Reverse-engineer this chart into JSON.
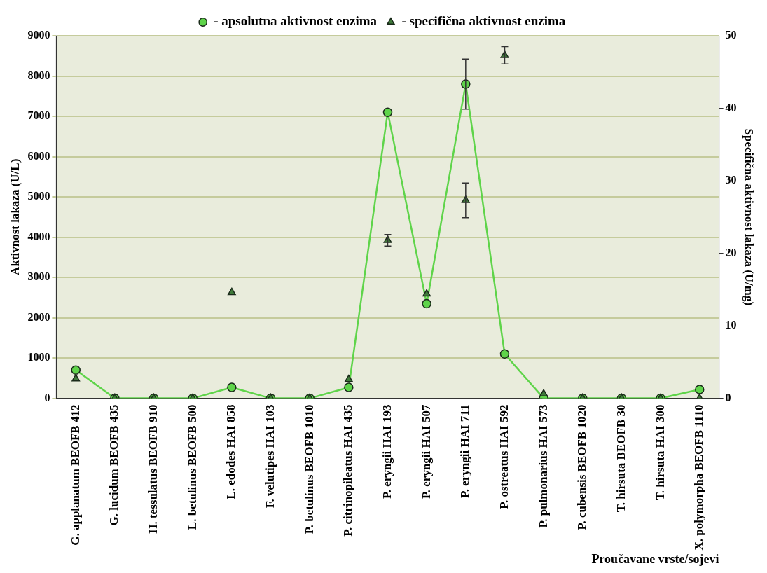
{
  "chart_data": {
    "type": "line",
    "xlabel": "Proučavane vrste/sojevi",
    "ylabel": "Aktivnost lakaza (U/L)",
    "y2label": "Specifična aktivnost lakaza (U/mg)",
    "categories": [
      "G. applanatum BEOFB 412",
      "G. lucidum BEOFB 435",
      "H. tessulatus BEOFB 910",
      "L. betulinus BEOFB 500",
      "L. edodes HAI 858",
      "F. velutipes HAI 103",
      "P. betulinus BEOFB 1010",
      "P. citrinopileatus HAI 435",
      "P. eryngii HAI 193",
      "P. eryngii HAI 507",
      "P. eryngii HAI 711",
      "P. ostreatus HAI 592",
      "P. pulmonarius HAI 573",
      "P. cubensis BEOFB 1020",
      "T. hirsuta BEOFB 30",
      "T. hirsuta HAI 300",
      "X. polymorpha BEOFB 1110"
    ],
    "series": [
      {
        "name": "- apsolutna aktivnost enzima",
        "color": "#5fd44a",
        "marker": "circle",
        "values": [
          700,
          0,
          0,
          0,
          270,
          0,
          0,
          270,
          7100,
          2350,
          7800,
          1100,
          0,
          0,
          0,
          0,
          220
        ],
        "errors": [
          null,
          null,
          null,
          null,
          null,
          null,
          null,
          null,
          null,
          null,
          620,
          null,
          null,
          null,
          null,
          null,
          null
        ]
      },
      {
        "name": "- specifična aktivnost enzima",
        "type": "scatter",
        "axis": "y2",
        "color": "#3f7a3a",
        "marker": "triangle",
        "values": [
          2.7,
          0,
          0,
          0,
          14.6,
          0,
          0,
          2.6,
          21.8,
          14.4,
          27.3,
          47.3,
          0.6,
          0,
          0,
          0,
          0
        ],
        "errors": [
          null,
          null,
          null,
          null,
          null,
          null,
          null,
          null,
          0.8,
          null,
          2.4,
          1.2,
          null,
          null,
          null,
          null,
          null
        ]
      }
    ],
    "ylim": [
      0,
      9000
    ],
    "yticks": [
      0,
      1000,
      2000,
      3000,
      4000,
      5000,
      6000,
      7000,
      8000,
      9000
    ],
    "y2lim": [
      0,
      50
    ],
    "y2ticks": [
      0,
      10,
      20,
      30,
      40,
      50
    ],
    "grid": "y",
    "legend": "top"
  }
}
